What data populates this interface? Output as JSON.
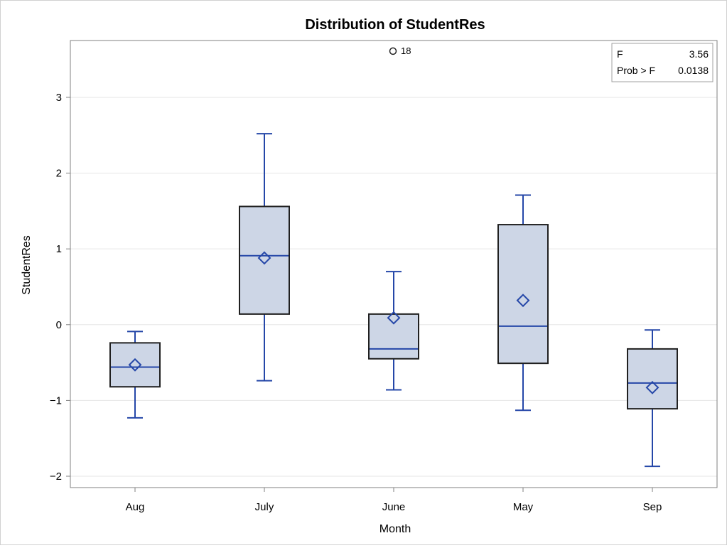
{
  "chart_data": {
    "type": "box",
    "title": "Distribution of StudentRes",
    "xlabel": "Month",
    "ylabel": "StudentRes",
    "ylim": [
      -2.15,
      3.75
    ],
    "yticks": [
      -2,
      -1,
      0,
      1,
      2,
      3
    ],
    "ytick_labels": [
      "−2",
      "−1",
      "0",
      "1",
      "2",
      "3"
    ],
    "grid": true,
    "categories": [
      "Aug",
      "July",
      "June",
      "May",
      "Sep"
    ],
    "boxes": [
      {
        "category": "Aug",
        "whisker_low": -1.23,
        "q1": -0.82,
        "median": -0.56,
        "q3": -0.24,
        "whisker_high": -0.09,
        "mean": -0.53
      },
      {
        "category": "July",
        "whisker_low": -0.74,
        "q1": 0.14,
        "median": 0.91,
        "q3": 1.56,
        "whisker_high": 2.52,
        "mean": 0.88
      },
      {
        "category": "June",
        "whisker_low": -0.86,
        "q1": -0.45,
        "median": -0.32,
        "q3": 0.14,
        "whisker_high": 0.7,
        "mean": 0.09
      },
      {
        "category": "May",
        "whisker_low": -1.13,
        "q1": -0.51,
        "median": -0.02,
        "q3": 1.32,
        "whisker_high": 1.71,
        "mean": 0.32
      },
      {
        "category": "Sep",
        "whisker_low": -1.87,
        "q1": -1.11,
        "median": -0.77,
        "q3": -0.32,
        "whisker_high": -0.07,
        "mean": -0.83
      }
    ],
    "outliers": [
      {
        "category": "June",
        "value": 3.61,
        "label": "18"
      }
    ],
    "inset_table": [
      {
        "label": "F",
        "value": "3.56"
      },
      {
        "label": "Prob > F",
        "value": "0.0138"
      }
    ],
    "colors": {
      "box_fill": "#cdd6e6",
      "box_border": "#202020",
      "whisker": "#2547a8",
      "median": "#2547a8",
      "mean_marker": "#2547a8",
      "grid": "#e6e6e6",
      "axis": "#808080"
    }
  }
}
